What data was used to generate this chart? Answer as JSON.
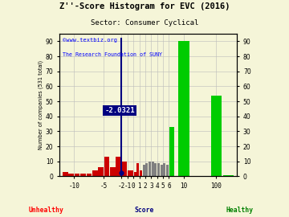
{
  "title": "Z''-Score Histogram for EVC (2016)",
  "subtitle": "Sector: Consumer Cyclical",
  "watermark1": "©www.textbiz.org",
  "watermark2": "The Research Foundation of SUNY",
  "marker_label": "-2.0321",
  "marker_x": -2.0321,
  "bg_color": "#f5f5d8",
  "grid_color": "#bbbbbb",
  "bar_positions": [
    -11.5,
    -10.5,
    -9.5,
    -8.5,
    -7.5,
    -6.5,
    -5.5,
    -4.5,
    -3.5,
    -2.5,
    -1.5,
    -0.5,
    0.25,
    0.75,
    1.25,
    1.75,
    2.25,
    2.75,
    3.25,
    3.75,
    4.25,
    4.75,
    5.25,
    5.75,
    6.5,
    8.5,
    14.0,
    16.0
  ],
  "bar_heights": [
    3,
    2,
    2,
    2,
    2,
    4,
    6,
    13,
    6,
    13,
    10,
    4,
    3,
    9,
    4,
    8,
    9,
    10,
    10,
    9,
    9,
    8,
    9,
    8,
    33,
    90,
    54,
    1
  ],
  "bar_widths": [
    1,
    1,
    1,
    1,
    1,
    1,
    1,
    1,
    1,
    1,
    1,
    1,
    0.45,
    0.45,
    0.45,
    0.45,
    0.45,
    0.45,
    0.45,
    0.45,
    0.45,
    0.45,
    0.45,
    0.45,
    1,
    2,
    2,
    2
  ],
  "bar_colors": [
    "#cc0000",
    "#cc0000",
    "#cc0000",
    "#cc0000",
    "#cc0000",
    "#cc0000",
    "#cc0000",
    "#cc0000",
    "#cc0000",
    "#cc0000",
    "#cc0000",
    "#cc0000",
    "#cc0000",
    "#cc0000",
    "#cc0000",
    "#808080",
    "#808080",
    "#808080",
    "#808080",
    "#808080",
    "#808080",
    "#808080",
    "#808080",
    "#808080",
    "#00cc00",
    "#00cc00",
    "#00cc00",
    "#00cc00"
  ],
  "xtick_pos": [
    -10,
    -5,
    -2,
    -1,
    0,
    1,
    2,
    3,
    4,
    5,
    6,
    8.5,
    14
  ],
  "xtick_labels": [
    "-10",
    "-5",
    "-2",
    "-1",
    "0",
    "1",
    "2",
    "3",
    "4",
    "5",
    "6",
    "10",
    "100"
  ],
  "ytick_pos": [
    0,
    10,
    20,
    30,
    40,
    50,
    60,
    70,
    80,
    90
  ],
  "ytick_labels": [
    "0",
    "10",
    "20",
    "30",
    "40",
    "50",
    "60",
    "70",
    "80",
    "90"
  ],
  "xlim": [
    -12.5,
    17.5
  ],
  "ylim": [
    0,
    95
  ],
  "marker_line_y": 44,
  "marker_line_x1": -4.2,
  "marker_line_x2": -0.3
}
